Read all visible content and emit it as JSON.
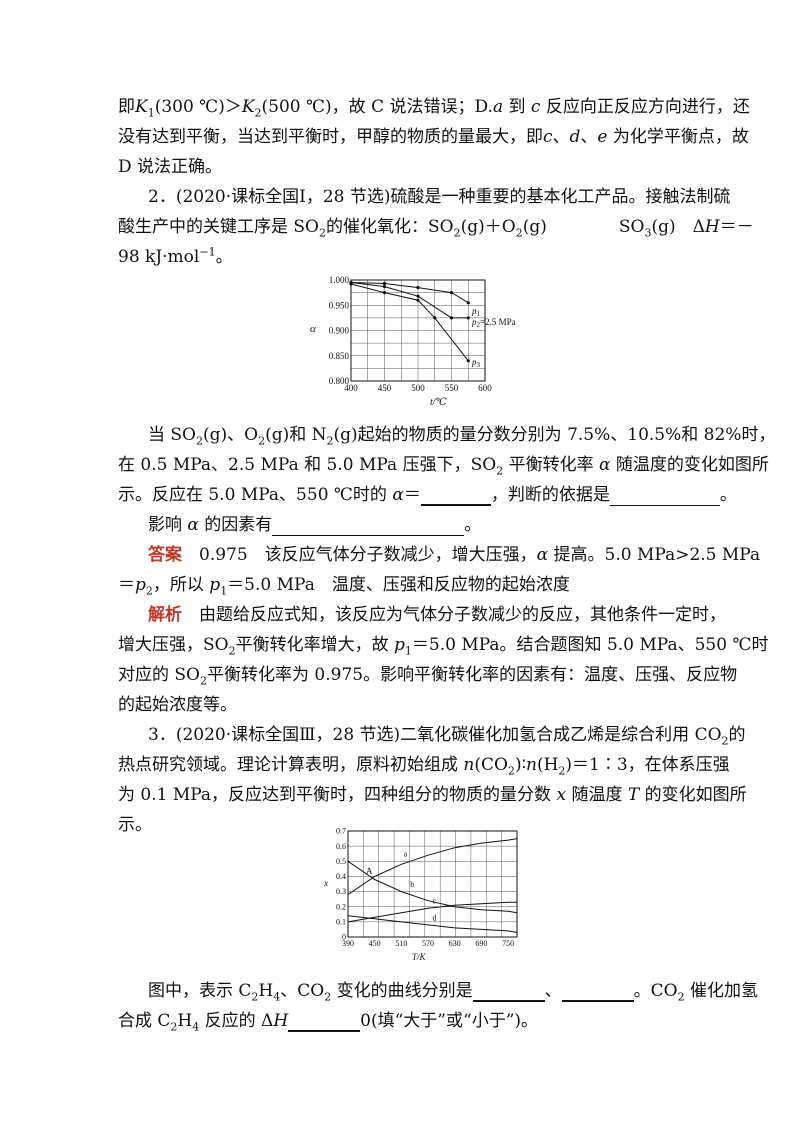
{
  "text": {
    "l1": [
      "即",
      "K",
      "1",
      "(300 ℃)＞",
      "K",
      "2",
      "(500 ℃)，故 C 说法错误；D.",
      "a",
      " 到 ",
      "c",
      " 反应向正反应方向进行，还"
    ],
    "l2": "没有达到平衡，当达到平衡时，甲醇的物质的量最大，即",
    "l2_vars": [
      "c",
      "d",
      "e"
    ],
    "l2_end": "为化学平衡点，故",
    "l3": "D 说法正确。",
    "q2_1": "2．(2020·课标全国Ⅰ，28 节选)硫酸是一种重要的基本化工产品。接触法制硫",
    "q2_2a": "酸生产中的关键工序是 SO",
    "q2_2b": "的催化氧化：SO",
    "q2_2c": "(g)＋O",
    "q2_2d": "(g)",
    "q2_2e": "SO",
    "q2_2f": "(g)　Δ",
    "q2_2g": "H",
    "q2_2h": "＝－",
    "q2_3a": "98 kJ·mol",
    "q2_3b": "−1",
    "q2_3c": "。",
    "p1a": "当 SO",
    "p1b": "(g)、O",
    "p1c": "(g)和 N",
    "p1d": "(g)起始的物质的量分数分别为 7.5%、10.5%和 82%时，",
    "p2a": "在 0.5 MPa、2.5 MPa 和 5.0 MPa 压强下，SO",
    "p2b": " 平衡转化率 ",
    "p2c": "α",
    "p2d": " 随温度的变化如图所",
    "p3a": "示。反应在 5.0 MPa、550 ℃时的 ",
    "p3b": "α",
    "p3c": "＝",
    "p3d": "，判断的依据是",
    "p3e": "。",
    "p4a": "影响 ",
    "p4b": "α",
    "p4c": " 的因素有",
    "p4d": "。",
    "ans_label": "答案",
    "ans1a": "　0.975　该反应气体分子数减少，增大压强，",
    "ans1b": "α",
    "ans1c": " 提高。5.0 MPa>2.5 MPa",
    "ans2a": "＝",
    "ans2b": "p",
    "ans2c": "2",
    "ans2d": "，所以 ",
    "ans2e": "p",
    "ans2f": "1",
    "ans2g": "＝5.0 MPa　温度、压强和反应物的起始浓度",
    "jx_label": "解析",
    "jx1": "　由题给反应式知，该反应为气体分子数减少的反应，其他条件一定时，",
    "jx2a": "增大压强，SO",
    "jx2b": "平衡转化率增大，故 ",
    "jx2c": "p",
    "jx2d": "1",
    "jx2e": "＝5.0 MPa。结合题图知 5.0 MPa、550 ℃时",
    "jx3a": "对应的 SO",
    "jx3b": "平衡转化率为 0.975。影响平衡转化率的因素有：温度、压强、反应物",
    "jx4": "的起始浓度等。",
    "q3_1a": "3．(2020·课标全国Ⅲ，28 节选)二氧化碳催化加氢合成乙烯是综合利用 CO",
    "q3_1b": "的",
    "q3_2a": "热点研究领域。理论计算表明，原料初始组成 ",
    "q3_2b": "n",
    "q3_2c": "(CO",
    "q3_2d": ")∶",
    "q3_2e": "n",
    "q3_2f": "(H",
    "q3_2g": ")＝1∶3，在体系压强",
    "q3_3a": "为 0.1 MPa，反应达到平衡时，四种组分的物质的量分数 ",
    "q3_3b": "x",
    "q3_3c": " 随温度 ",
    "q3_3d": "T",
    "q3_3e": " 的变化如图所",
    "q3_4": "示。",
    "f1a": "图中，表示 C",
    "f1b": "H",
    "f1c": "、CO",
    "f1d": " 变化的曲线分别是",
    "f1e": "、",
    "f1f": "。CO",
    "f1g": " 催化加氢",
    "f2a": "合成 C",
    "f2b": "H",
    "f2c": " 反应的 Δ",
    "f2d": "H",
    "f2e": "0(填“大于”或“小于”)。",
    "sub2": "2",
    "sub3": "3",
    "sub4": "4"
  },
  "chart_data": [
    {
      "type": "line",
      "xlabel": "t/℃",
      "ylabel": "α",
      "xlim": [
        400,
        600
      ],
      "ylim": [
        0.8,
        1.0
      ],
      "x_ticks": [
        "400",
        "450",
        "500",
        "550",
        "600"
      ],
      "y_ticks": [
        "0.800",
        "0.850",
        "0.900",
        "0.950",
        "1.000"
      ],
      "grid": true,
      "series": [
        {
          "name": "p1",
          "x": [
            400,
            450,
            500,
            550,
            575
          ],
          "y": [
            0.995,
            0.993,
            0.985,
            0.975,
            0.955
          ]
        },
        {
          "name": "p2=2.5 MPa",
          "x": [
            400,
            450,
            500,
            550,
            575
          ],
          "y": [
            0.995,
            0.987,
            0.968,
            0.925,
            0.925
          ]
        },
        {
          "name": "p3",
          "x": [
            400,
            450,
            500,
            525,
            575
          ],
          "y": [
            0.992,
            0.975,
            0.96,
            0.925,
            0.84
          ]
        }
      ],
      "labels": [
        "p",
        "1",
        "p",
        "2",
        "=2.5 MPa",
        "p",
        "3"
      ]
    },
    {
      "type": "line",
      "xlabel": "T/K",
      "ylabel": "x",
      "xlim": [
        390,
        770
      ],
      "ylim": [
        0,
        0.7
      ],
      "x_ticks": [
        "390",
        "450",
        "510",
        "570",
        "630",
        "690",
        "750"
      ],
      "y_ticks": [
        "0",
        "0.1",
        "0.2",
        "0.3",
        "0.4",
        "0.5",
        "0.6",
        "0.7"
      ],
      "grid": true,
      "point_label": "A",
      "series": [
        {
          "name": "a",
          "x": [
            390,
            450,
            510,
            570,
            630,
            690,
            750,
            770
          ],
          "y": [
            0.28,
            0.4,
            0.48,
            0.54,
            0.59,
            0.62,
            0.64,
            0.65
          ]
        },
        {
          "name": "b",
          "x": [
            390,
            450,
            510,
            570,
            630,
            690,
            750,
            770
          ],
          "y": [
            0.5,
            0.38,
            0.3,
            0.24,
            0.2,
            0.18,
            0.17,
            0.16
          ]
        },
        {
          "name": "c",
          "x": [
            390,
            450,
            510,
            570,
            630,
            690,
            750,
            770
          ],
          "y": [
            0.1,
            0.13,
            0.16,
            0.19,
            0.21,
            0.22,
            0.23,
            0.23
          ]
        },
        {
          "name": "d",
          "x": [
            390,
            450,
            510,
            570,
            630,
            690,
            750,
            770
          ],
          "y": [
            0.14,
            0.12,
            0.1,
            0.08,
            0.06,
            0.05,
            0.04,
            0.03
          ]
        }
      ]
    }
  ]
}
